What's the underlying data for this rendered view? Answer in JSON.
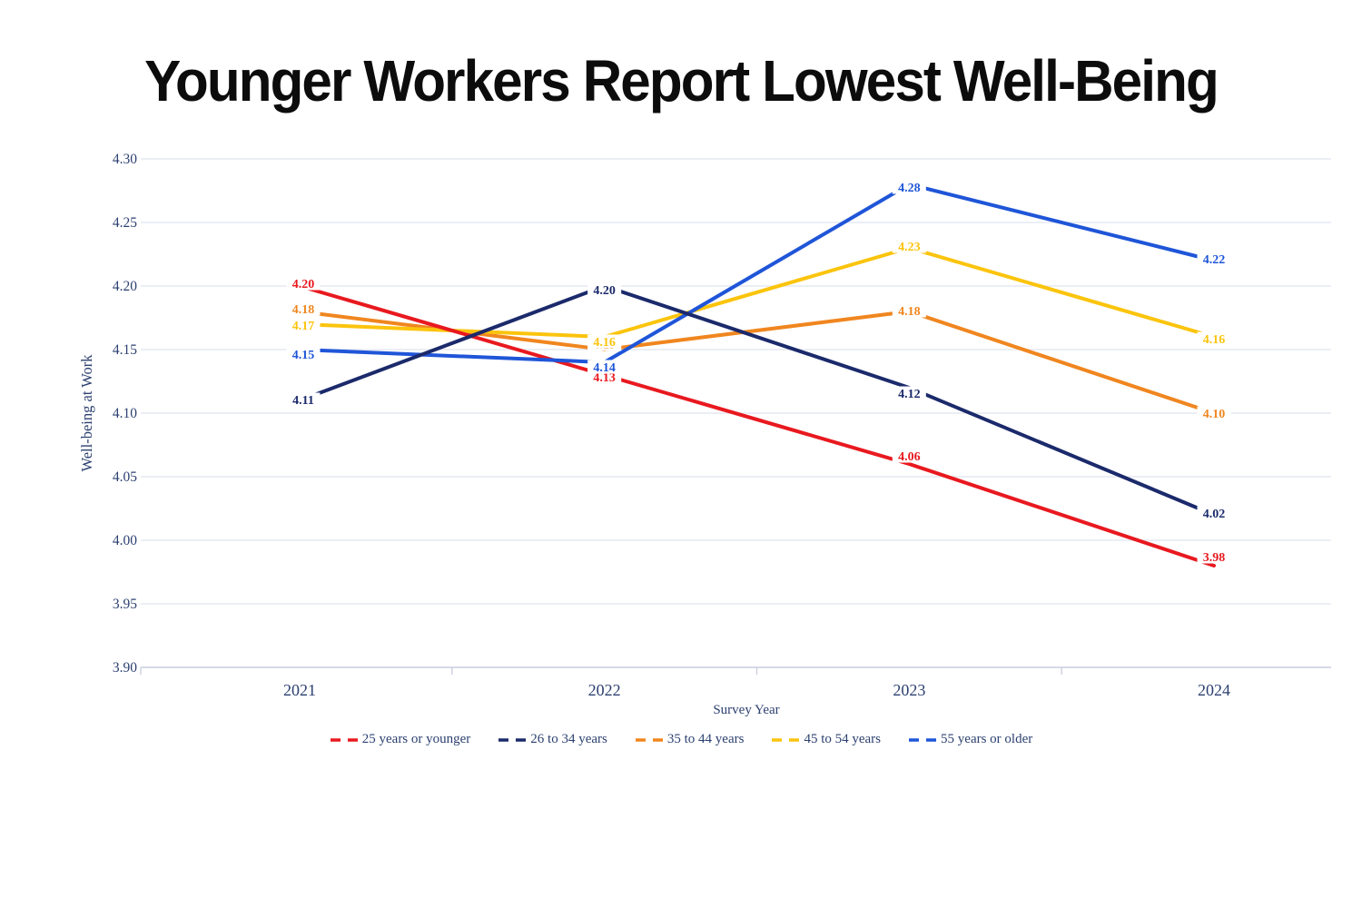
{
  "chart_data": {
    "type": "line",
    "title": "Younger Workers Report Lowest Well-Being",
    "xlabel": "Survey Year",
    "ylabel": "Well-being at Work",
    "categories": [
      "2021",
      "2022",
      "2023",
      "2024"
    ],
    "series": [
      {
        "name": "25 years or younger",
        "color": "#e8191f",
        "values": [
          4.2,
          4.13,
          4.06,
          3.98
        ],
        "labels": [
          "4.20",
          "4.13",
          "4.06",
          "3.98"
        ]
      },
      {
        "name": "26 to 34 years",
        "color": "#1b2a6b",
        "values": [
          4.11,
          4.2,
          4.12,
          4.02
        ],
        "labels": [
          "4.11",
          "4.20",
          "4.12",
          "4.02"
        ]
      },
      {
        "name": "35 to 44 years",
        "color": "#f0861f",
        "values": [
          4.18,
          4.15,
          4.18,
          4.1
        ],
        "labels": [
          "4.18",
          "4.15",
          "4.18",
          "4.10"
        ]
      },
      {
        "name": "45 to 54 years",
        "color": "#fbc40d",
        "values": [
          4.17,
          4.16,
          4.23,
          4.16
        ],
        "labels": [
          "4.17",
          "4.16",
          "4.23",
          "4.16"
        ]
      },
      {
        "name": "55 years or older",
        "color": "#1f55d8",
        "values": [
          4.15,
          4.14,
          4.28,
          4.22
        ],
        "labels": [
          "4.15",
          "4.14",
          "4.28",
          "4.22"
        ]
      }
    ],
    "ylim": [
      3.9,
      4.3
    ],
    "yticks": [
      "4.30",
      "4.25",
      "4.20",
      "4.15",
      "4.10",
      "4.05",
      "4.00",
      "3.95",
      "3.90"
    ],
    "grid": true,
    "legend_position": "bottom",
    "axis_text_color": "#2c4070",
    "gridline_color": "#e6e9f2",
    "axis_line_color": "#ccd1df",
    "background_color": "#ffffff"
  }
}
